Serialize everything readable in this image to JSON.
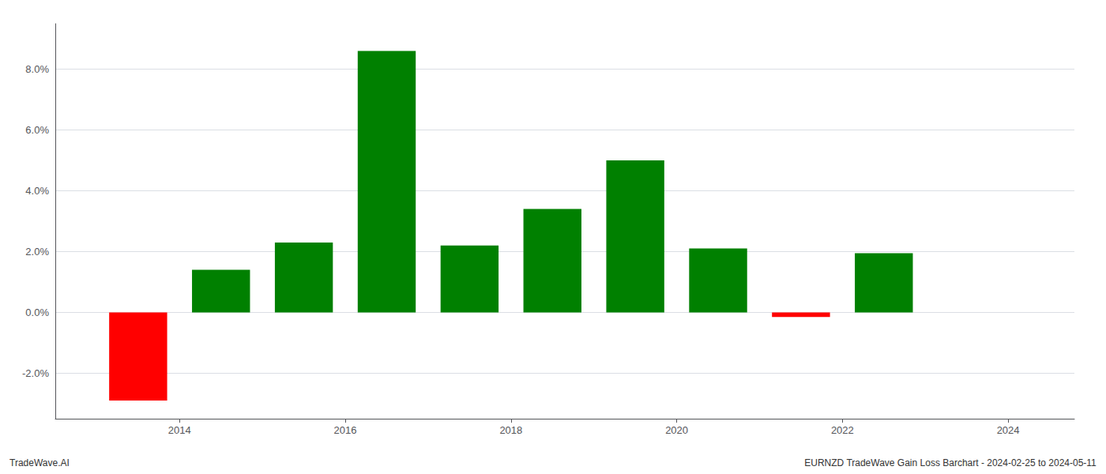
{
  "chart_data": {
    "type": "bar",
    "x": [
      2013.5,
      2014.5,
      2015.5,
      2016.5,
      2017.5,
      2018.5,
      2019.5,
      2020.5,
      2021.5,
      2022.5
    ],
    "values": [
      -2.9,
      1.4,
      2.3,
      8.6,
      2.2,
      3.4,
      5.0,
      2.1,
      -0.15,
      1.95
    ],
    "colors": [
      "#ff0000",
      "#008000",
      "#008000",
      "#008000",
      "#008000",
      "#008000",
      "#008000",
      "#008000",
      "#ff0000",
      "#008000"
    ],
    "xlim": [
      2012.5,
      2024.8
    ],
    "xticks": [
      2014,
      2016,
      2018,
      2020,
      2022,
      2024
    ],
    "ylim": [
      -3.5,
      9.5
    ],
    "yticks": [
      {
        "value": -2.0,
        "label": "-2.0%"
      },
      {
        "value": 0.0,
        "label": "0.0%"
      },
      {
        "value": 2.0,
        "label": "2.0%"
      },
      {
        "value": 4.0,
        "label": "4.0%"
      },
      {
        "value": 6.0,
        "label": "6.0%"
      },
      {
        "value": 8.0,
        "label": "8.0%"
      }
    ],
    "grid": true,
    "annotations": [
      "TradeWave.AI",
      "EURNZD TradeWave Gain Loss Barchart - 2024-02-25 to 2024-05-11"
    ]
  }
}
